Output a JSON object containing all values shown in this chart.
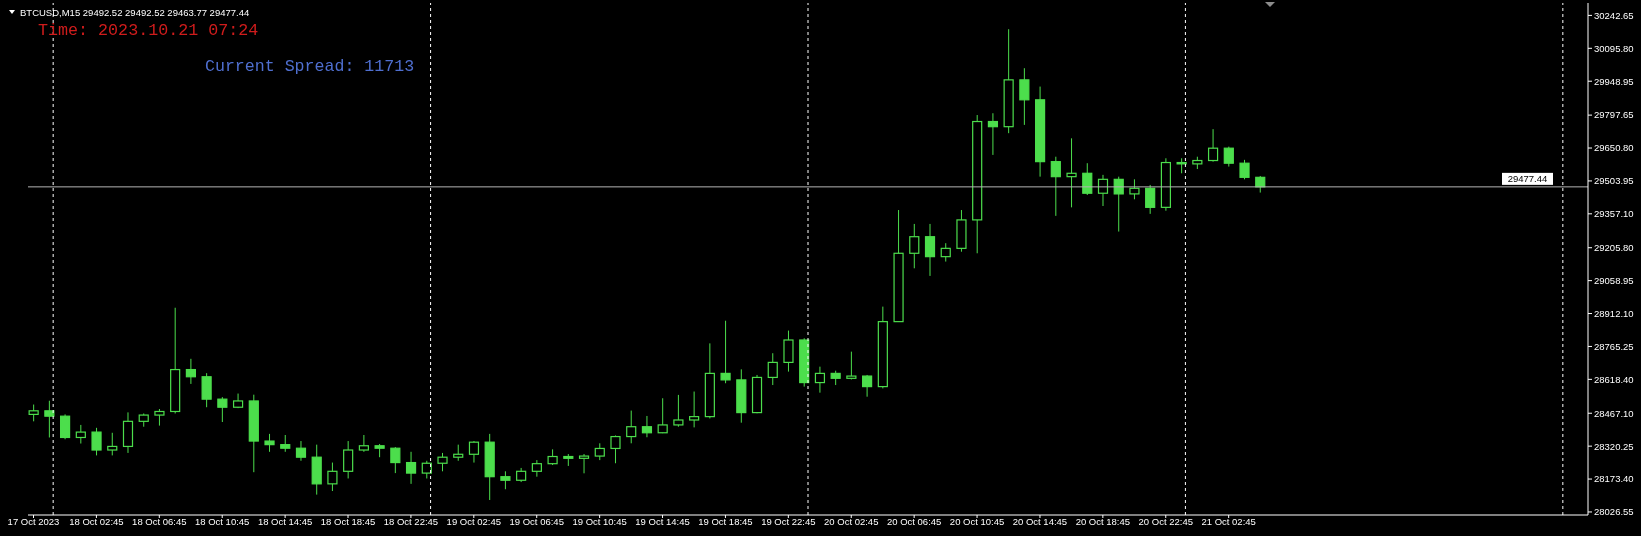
{
  "chart_data": {
    "type": "candlestick",
    "title": "BTCUSD,M15 29492.52 29492.52 29463.77 29477.44",
    "annotations": [
      "Time: 2023.10.21 07:24",
      "Current Spread: 11713"
    ],
    "color": "#4cde4c",
    "x": [
      "2023-10-17T22:45",
      "2023-10-17T23:45",
      "2023-10-18T00:45",
      "2023-10-18T01:45",
      "2023-10-18T02:45",
      "2023-10-18T03:45",
      "2023-10-18T04:45",
      "2023-10-18T05:45",
      "2023-10-18T06:45",
      "2023-10-18T07:45",
      "2023-10-18T08:45",
      "2023-10-18T09:45",
      "2023-10-18T10:45",
      "2023-10-18T11:45",
      "2023-10-18T12:45",
      "2023-10-18T13:45",
      "2023-10-18T14:45",
      "2023-10-18T15:45",
      "2023-10-18T16:45",
      "2023-10-18T17:45",
      "2023-10-18T18:45",
      "2023-10-18T19:45",
      "2023-10-18T20:45",
      "2023-10-18T21:45",
      "2023-10-18T22:45",
      "2023-10-18T23:45",
      "2023-10-19T00:45",
      "2023-10-19T01:45",
      "2023-10-19T02:45",
      "2023-10-19T03:45",
      "2023-10-19T04:45",
      "2023-10-19T05:45",
      "2023-10-19T06:45",
      "2023-10-19T07:45",
      "2023-10-19T08:45",
      "2023-10-19T09:45",
      "2023-10-19T10:45",
      "2023-10-19T11:45",
      "2023-10-19T12:45",
      "2023-10-19T13:45",
      "2023-10-19T14:45",
      "2023-10-19T15:45",
      "2023-10-19T16:45",
      "2023-10-19T17:45",
      "2023-10-19T18:45",
      "2023-10-19T19:45",
      "2023-10-19T20:45",
      "2023-10-19T21:45",
      "2023-10-19T22:45",
      "2023-10-19T23:45",
      "2023-10-20T00:45",
      "2023-10-20T01:45",
      "2023-10-20T02:45",
      "2023-10-20T03:45",
      "2023-10-20T04:45",
      "2023-10-20T05:45",
      "2023-10-20T06:45",
      "2023-10-20T07:45",
      "2023-10-20T08:45",
      "2023-10-20T09:45",
      "2023-10-20T10:45",
      "2023-10-20T11:45",
      "2023-10-20T12:45",
      "2023-10-20T13:45",
      "2023-10-20T14:45",
      "2023-10-20T15:45",
      "2023-10-20T16:45",
      "2023-10-20T17:45",
      "2023-10-20T18:45",
      "2023-10-20T19:45",
      "2023-10-20T20:45",
      "2023-10-20T21:45",
      "2023-10-20T22:45",
      "2023-10-20T23:45",
      "2023-10-21T00:45",
      "2023-10-21T01:45",
      "2023-10-21T02:45",
      "2023-10-21T03:45",
      "2023-10-21T04:45"
    ],
    "ohlc": [
      [
        28462,
        28506,
        28431,
        28478
      ],
      [
        28478,
        28523,
        28359,
        28454
      ],
      [
        28454,
        28462,
        28351,
        28359
      ],
      [
        28359,
        28415,
        28332,
        28383
      ],
      [
        28383,
        28402,
        28279,
        28303
      ],
      [
        28303,
        28380,
        28279,
        28319
      ],
      [
        28319,
        28471,
        28290,
        28431
      ],
      [
        28431,
        28466,
        28407,
        28459
      ],
      [
        28459,
        28486,
        28412,
        28475
      ],
      [
        28475,
        28938,
        28466,
        28662
      ],
      [
        28662,
        28710,
        28598,
        28630
      ],
      [
        28630,
        28646,
        28494,
        28530
      ],
      [
        28530,
        28539,
        28428,
        28494
      ],
      [
        28494,
        28555,
        28490,
        28522
      ],
      [
        28522,
        28550,
        28204,
        28343
      ],
      [
        28343,
        28375,
        28295,
        28327
      ],
      [
        28327,
        28370,
        28295,
        28311
      ],
      [
        28311,
        28343,
        28255,
        28271
      ],
      [
        28271,
        28327,
        28104,
        28152
      ],
      [
        28152,
        28247,
        28120,
        28208
      ],
      [
        28208,
        28343,
        28176,
        28303
      ],
      [
        28303,
        28370,
        28295,
        28322
      ],
      [
        28322,
        28330,
        28271,
        28311
      ],
      [
        28311,
        28316,
        28200,
        28247
      ],
      [
        28247,
        28295,
        28152,
        28200
      ],
      [
        28200,
        28255,
        28176,
        28244
      ],
      [
        28244,
        28290,
        28208,
        28271
      ],
      [
        28271,
        28327,
        28255,
        28284
      ],
      [
        28284,
        28343,
        28247,
        28338
      ],
      [
        28338,
        28375,
        28080,
        28184
      ],
      [
        28184,
        28208,
        28128,
        28168
      ],
      [
        28168,
        28223,
        28160,
        28208
      ],
      [
        28208,
        28258,
        28184,
        28242
      ],
      [
        28242,
        28306,
        28236,
        28274
      ],
      [
        28274,
        28285,
        28232,
        28266
      ],
      [
        28266,
        28285,
        28199,
        28276
      ],
      [
        28276,
        28333,
        28258,
        28310
      ],
      [
        28310,
        28368,
        28244,
        28363
      ],
      [
        28363,
        28479,
        28333,
        28407
      ],
      [
        28407,
        28455,
        28360,
        28380
      ],
      [
        28380,
        28534,
        28378,
        28415
      ],
      [
        28415,
        28549,
        28407,
        28437
      ],
      [
        28437,
        28564,
        28404,
        28452
      ],
      [
        28452,
        28779,
        28444,
        28645
      ],
      [
        28645,
        28880,
        28601,
        28616
      ],
      [
        28616,
        28663,
        28425,
        28470
      ],
      [
        28470,
        28638,
        28467,
        28627
      ],
      [
        28627,
        28735,
        28593,
        28694
      ],
      [
        28694,
        28836,
        28653,
        28794
      ],
      [
        28794,
        28802,
        28586,
        28604
      ],
      [
        28604,
        28675,
        28559,
        28645
      ],
      [
        28645,
        28657,
        28593,
        28623
      ],
      [
        28623,
        28742,
        28618,
        28633
      ],
      [
        28633,
        28638,
        28541,
        28586
      ],
      [
        28586,
        28943,
        28578,
        28876
      ],
      [
        28876,
        29374,
        28876,
        29181
      ],
      [
        29181,
        29312,
        29114,
        29255
      ],
      [
        29255,
        29312,
        29080,
        29166
      ],
      [
        29166,
        29226,
        29144,
        29203
      ],
      [
        29203,
        29374,
        29188,
        29330
      ],
      [
        29330,
        29798,
        29181,
        29769
      ],
      [
        29769,
        29806,
        29620,
        29746
      ],
      [
        29746,
        30181,
        29717,
        29955
      ],
      [
        29955,
        30007,
        29754,
        29866
      ],
      [
        29866,
        29925,
        29523,
        29590
      ],
      [
        29590,
        29612,
        29348,
        29523
      ],
      [
        29523,
        29694,
        29386,
        29538
      ],
      [
        29538,
        29583,
        29441,
        29449
      ],
      [
        29449,
        29531,
        29392,
        29511
      ],
      [
        29511,
        29523,
        29278,
        29446
      ],
      [
        29446,
        29511,
        29422,
        29471
      ],
      [
        29471,
        29486,
        29357,
        29386
      ],
      [
        29386,
        29605,
        29371,
        29586
      ],
      [
        29586,
        29605,
        29538,
        29580
      ],
      [
        29580,
        29612,
        29557,
        29595
      ],
      [
        29595,
        29735,
        29590,
        29650
      ],
      [
        29650,
        29657,
        29568,
        29583
      ],
      [
        29583,
        29598,
        29511,
        29520
      ],
      [
        29520,
        29526,
        29452,
        29477.44
      ]
    ],
    "xlim": [
      "2023-10-17T22:24",
      "2023-10-22T01:36"
    ],
    "xticks": [
      {
        "value": "2023-10-17T22:45",
        "label": "17 Oct 2023"
      },
      {
        "value": "2023-10-18T02:45",
        "label": "18 Oct 02:45"
      },
      {
        "value": "2023-10-18T06:45",
        "label": "18 Oct 06:45"
      },
      {
        "value": "2023-10-18T10:45",
        "label": "18 Oct 10:45"
      },
      {
        "value": "2023-10-18T14:45",
        "label": "18 Oct 14:45"
      },
      {
        "value": "2023-10-18T18:45",
        "label": "18 Oct 18:45"
      },
      {
        "value": "2023-10-18T22:45",
        "label": "18 Oct 22:45"
      },
      {
        "value": "2023-10-19T02:45",
        "label": "19 Oct 02:45"
      },
      {
        "value": "2023-10-19T06:45",
        "label": "19 Oct 06:45"
      },
      {
        "value": "2023-10-19T10:45",
        "label": "19 Oct 10:45"
      },
      {
        "value": "2023-10-19T14:45",
        "label": "19 Oct 14:45"
      },
      {
        "value": "2023-10-19T18:45",
        "label": "19 Oct 18:45"
      },
      {
        "value": "2023-10-19T22:45",
        "label": "19 Oct 22:45"
      },
      {
        "value": "2023-10-20T02:45",
        "label": "20 Oct 02:45"
      },
      {
        "value": "2023-10-20T06:45",
        "label": "20 Oct 06:45"
      },
      {
        "value": "2023-10-20T10:45",
        "label": "20 Oct 10:45"
      },
      {
        "value": "2023-10-20T14:45",
        "label": "20 Oct 14:45"
      },
      {
        "value": "2023-10-20T18:45",
        "label": "20 Oct 18:45"
      },
      {
        "value": "2023-10-20T22:45",
        "label": "20 Oct 22:45"
      },
      {
        "value": "2023-10-21T02:45",
        "label": "21 Oct 02:45"
      }
    ],
    "ylim": [
      28013,
      30298
    ],
    "yticks": [
      28026.55,
      {
        "value": 28173.4,
        "label": "28173.40"
      },
      28320.25,
      {
        "value": 28467.1,
        "label": "28467.10"
      },
      {
        "value": 28618.4,
        "label": "28618.40"
      },
      28765.25,
      {
        "value": 28912.1,
        "label": "28912.10"
      },
      29058.95,
      {
        "value": 29205.8,
        "label": "29205.80"
      },
      {
        "value": 29357.1,
        "label": "29357.10"
      },
      29503.95,
      {
        "value": 29650.8,
        "label": "29650.80"
      },
      29797.65,
      29948.95,
      {
        "value": 30095.8,
        "label": "30095.80"
      },
      30242.65
    ],
    "ref_lines": [
      {
        "axis": "x",
        "value": "2023-10-18T00:00",
        "color": "#ffffff",
        "line_style": "dashed"
      },
      {
        "axis": "x",
        "value": "2023-10-19T00:00",
        "color": "#ffffff",
        "line_style": "dashed"
      },
      {
        "axis": "x",
        "value": "2023-10-20T00:00",
        "color": "#ffffff",
        "line_style": "dashed"
      },
      {
        "axis": "x",
        "value": "2023-10-21T00:00",
        "color": "#ffffff",
        "line_style": "dashed"
      },
      {
        "axis": "x",
        "value": "2023-10-22T00:00",
        "color": "#ffffff",
        "line_style": "dashed"
      },
      {
        "axis": "y",
        "value": 29477.44,
        "label": "29477.44",
        "color": "#b4b4b4",
        "line_style": "solid"
      }
    ]
  }
}
